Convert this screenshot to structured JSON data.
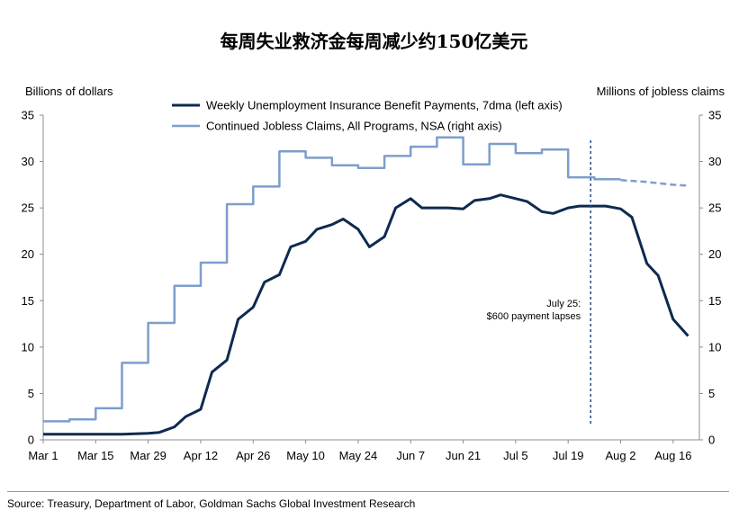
{
  "title": "每周失业救济金每周减少约150亿美元",
  "source": "Source: Treasury, Department of Labor, Goldman Sachs Global Investment Research",
  "chart_data": {
    "type": "line",
    "title": "每周失业救济金每周减少约150亿美元",
    "ylabel_left": "Billions of dollars",
    "ylabel_right": "Millions of jobless claims",
    "ylim_left": [
      0,
      35
    ],
    "ylim_right": [
      0,
      35
    ],
    "yticks": [
      "0",
      "5",
      "10",
      "15",
      "20",
      "25",
      "30",
      "35"
    ],
    "xticks": [
      "Mar 1",
      "Mar 15",
      "Mar 29",
      "Apr 12",
      "Apr 26",
      "May 10",
      "May 24",
      "Jun 7",
      "Jun 21",
      "Jul 5",
      "Jul 19",
      "Aug 2",
      "Aug 16"
    ],
    "x_unit": "days since Mar 1",
    "xlim": [
      0,
      175
    ],
    "legend": [
      "Weekly Unemployment Insurance Benefit Payments, 7dma (left axis)",
      "Continued Jobless Claims, All Programs, NSA (right axis)"
    ],
    "annotation": {
      "lines": [
        "July 25:",
        "$600 payment lapses"
      ],
      "x": 146
    },
    "colors": {
      "payments": "#0e2a4f",
      "claims": "#7d9ecb",
      "marker": "#1f4f80",
      "axis": "#8c8c8c"
    },
    "series": [
      {
        "name": "Weekly Unemployment Insurance Benefit Payments, 7dma (left axis)",
        "axis": "left",
        "style": "solid",
        "x": [
          0,
          7,
          14,
          21,
          28,
          31,
          35,
          38,
          42,
          45,
          49,
          52,
          56,
          59,
          63,
          66,
          70,
          73,
          77,
          80,
          84,
          87,
          91,
          94,
          98,
          101,
          105,
          108,
          112,
          115,
          119,
          122,
          126,
          129,
          133,
          136,
          140,
          143,
          147,
          150,
          154,
          157,
          161,
          164,
          168,
          172
        ],
        "values": [
          0.6,
          0.6,
          0.6,
          0.6,
          0.7,
          0.8,
          1.4,
          2.5,
          3.3,
          7.3,
          8.6,
          13.0,
          14.3,
          17.0,
          17.8,
          20.8,
          21.4,
          22.7,
          23.2,
          23.8,
          22.7,
          20.8,
          21.9,
          25.0,
          26.0,
          25.0,
          25.0,
          25.0,
          24.9,
          25.8,
          26.0,
          26.4,
          26.0,
          25.7,
          24.6,
          24.4,
          25.0,
          25.2,
          25.2,
          25.2,
          24.9,
          24.0,
          19.0,
          17.7,
          13.0,
          11.2
        ]
      },
      {
        "name": "Continued Jobless Claims, All Programs, NSA (right axis)",
        "axis": "right",
        "style": "step",
        "x": [
          0,
          7,
          14,
          21,
          28,
          35,
          42,
          49,
          56,
          63,
          70,
          77,
          84,
          91,
          98,
          105,
          112,
          119,
          126,
          133,
          140,
          147
        ],
        "values": [
          2.0,
          2.2,
          3.4,
          8.3,
          12.6,
          16.6,
          19.1,
          25.4,
          27.3,
          31.1,
          30.4,
          29.6,
          29.3,
          30.6,
          31.6,
          32.6,
          29.7,
          31.9,
          30.9,
          31.3,
          28.3,
          28.1
        ]
      },
      {
        "name": "Continued Jobless Claims projection",
        "axis": "right",
        "style": "dashed",
        "x": [
          154,
          161,
          168,
          172
        ],
        "values": [
          28.0,
          27.8,
          27.5,
          27.4
        ]
      }
    ]
  }
}
